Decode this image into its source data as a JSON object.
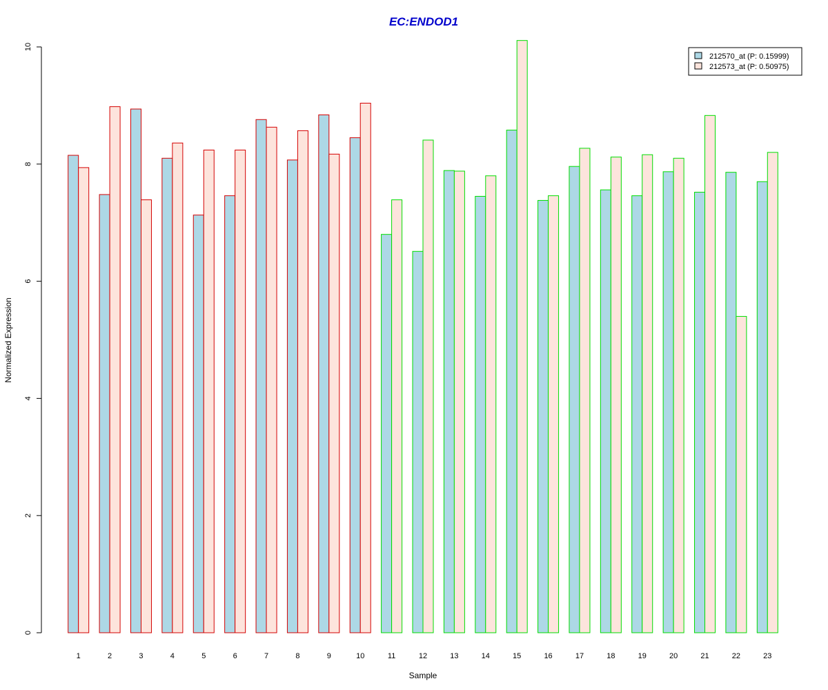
{
  "chart_data": {
    "type": "bar",
    "title": "EC:ENDOD1",
    "xlabel": "Sample",
    "ylabel": "Normalized Expression",
    "ylim": [
      0,
      10
    ],
    "yticks": [
      0,
      2,
      4,
      6,
      8,
      10
    ],
    "grid": false,
    "legend_position": "top-right",
    "categories": [
      "1",
      "2",
      "3",
      "4",
      "5",
      "6",
      "7",
      "8",
      "9",
      "10",
      "11",
      "12",
      "13",
      "14",
      "15",
      "16",
      "17",
      "18",
      "19",
      "20",
      "21",
      "22",
      "23"
    ],
    "groups": {
      "border_colors": [
        "#d40000",
        "#d40000",
        "#d40000",
        "#d40000",
        "#d40000",
        "#d40000",
        "#d40000",
        "#d40000",
        "#d40000",
        "#d40000",
        "#00dd00",
        "#00dd00",
        "#00dd00",
        "#00dd00",
        "#00dd00",
        "#00dd00",
        "#00dd00",
        "#00dd00",
        "#00dd00",
        "#00dd00",
        "#00dd00",
        "#00dd00",
        "#00dd00"
      ]
    },
    "series": [
      {
        "name": "212570_at (P: 0.15999)",
        "fill": "#add8e6",
        "values": [
          8.15,
          7.48,
          8.94,
          8.1,
          7.13,
          7.46,
          8.76,
          8.07,
          8.84,
          8.45,
          6.8,
          6.51,
          7.89,
          7.45,
          8.58,
          7.38,
          7.96,
          7.56,
          7.46,
          7.87,
          7.52,
          7.86,
          7.7
        ]
      },
      {
        "name": "212573_at (P: 0.50975)",
        "fill": "#fde4dc",
        "values": [
          7.94,
          8.98,
          7.39,
          8.36,
          8.24,
          8.24,
          8.63,
          8.57,
          8.17,
          9.04,
          7.39,
          8.41,
          7.88,
          7.8,
          10.11,
          7.46,
          8.27,
          8.12,
          8.16,
          8.1,
          8.83,
          5.4,
          8.2
        ]
      }
    ],
    "colors": {
      "title": "#0000cc",
      "axis": "#000000"
    }
  }
}
